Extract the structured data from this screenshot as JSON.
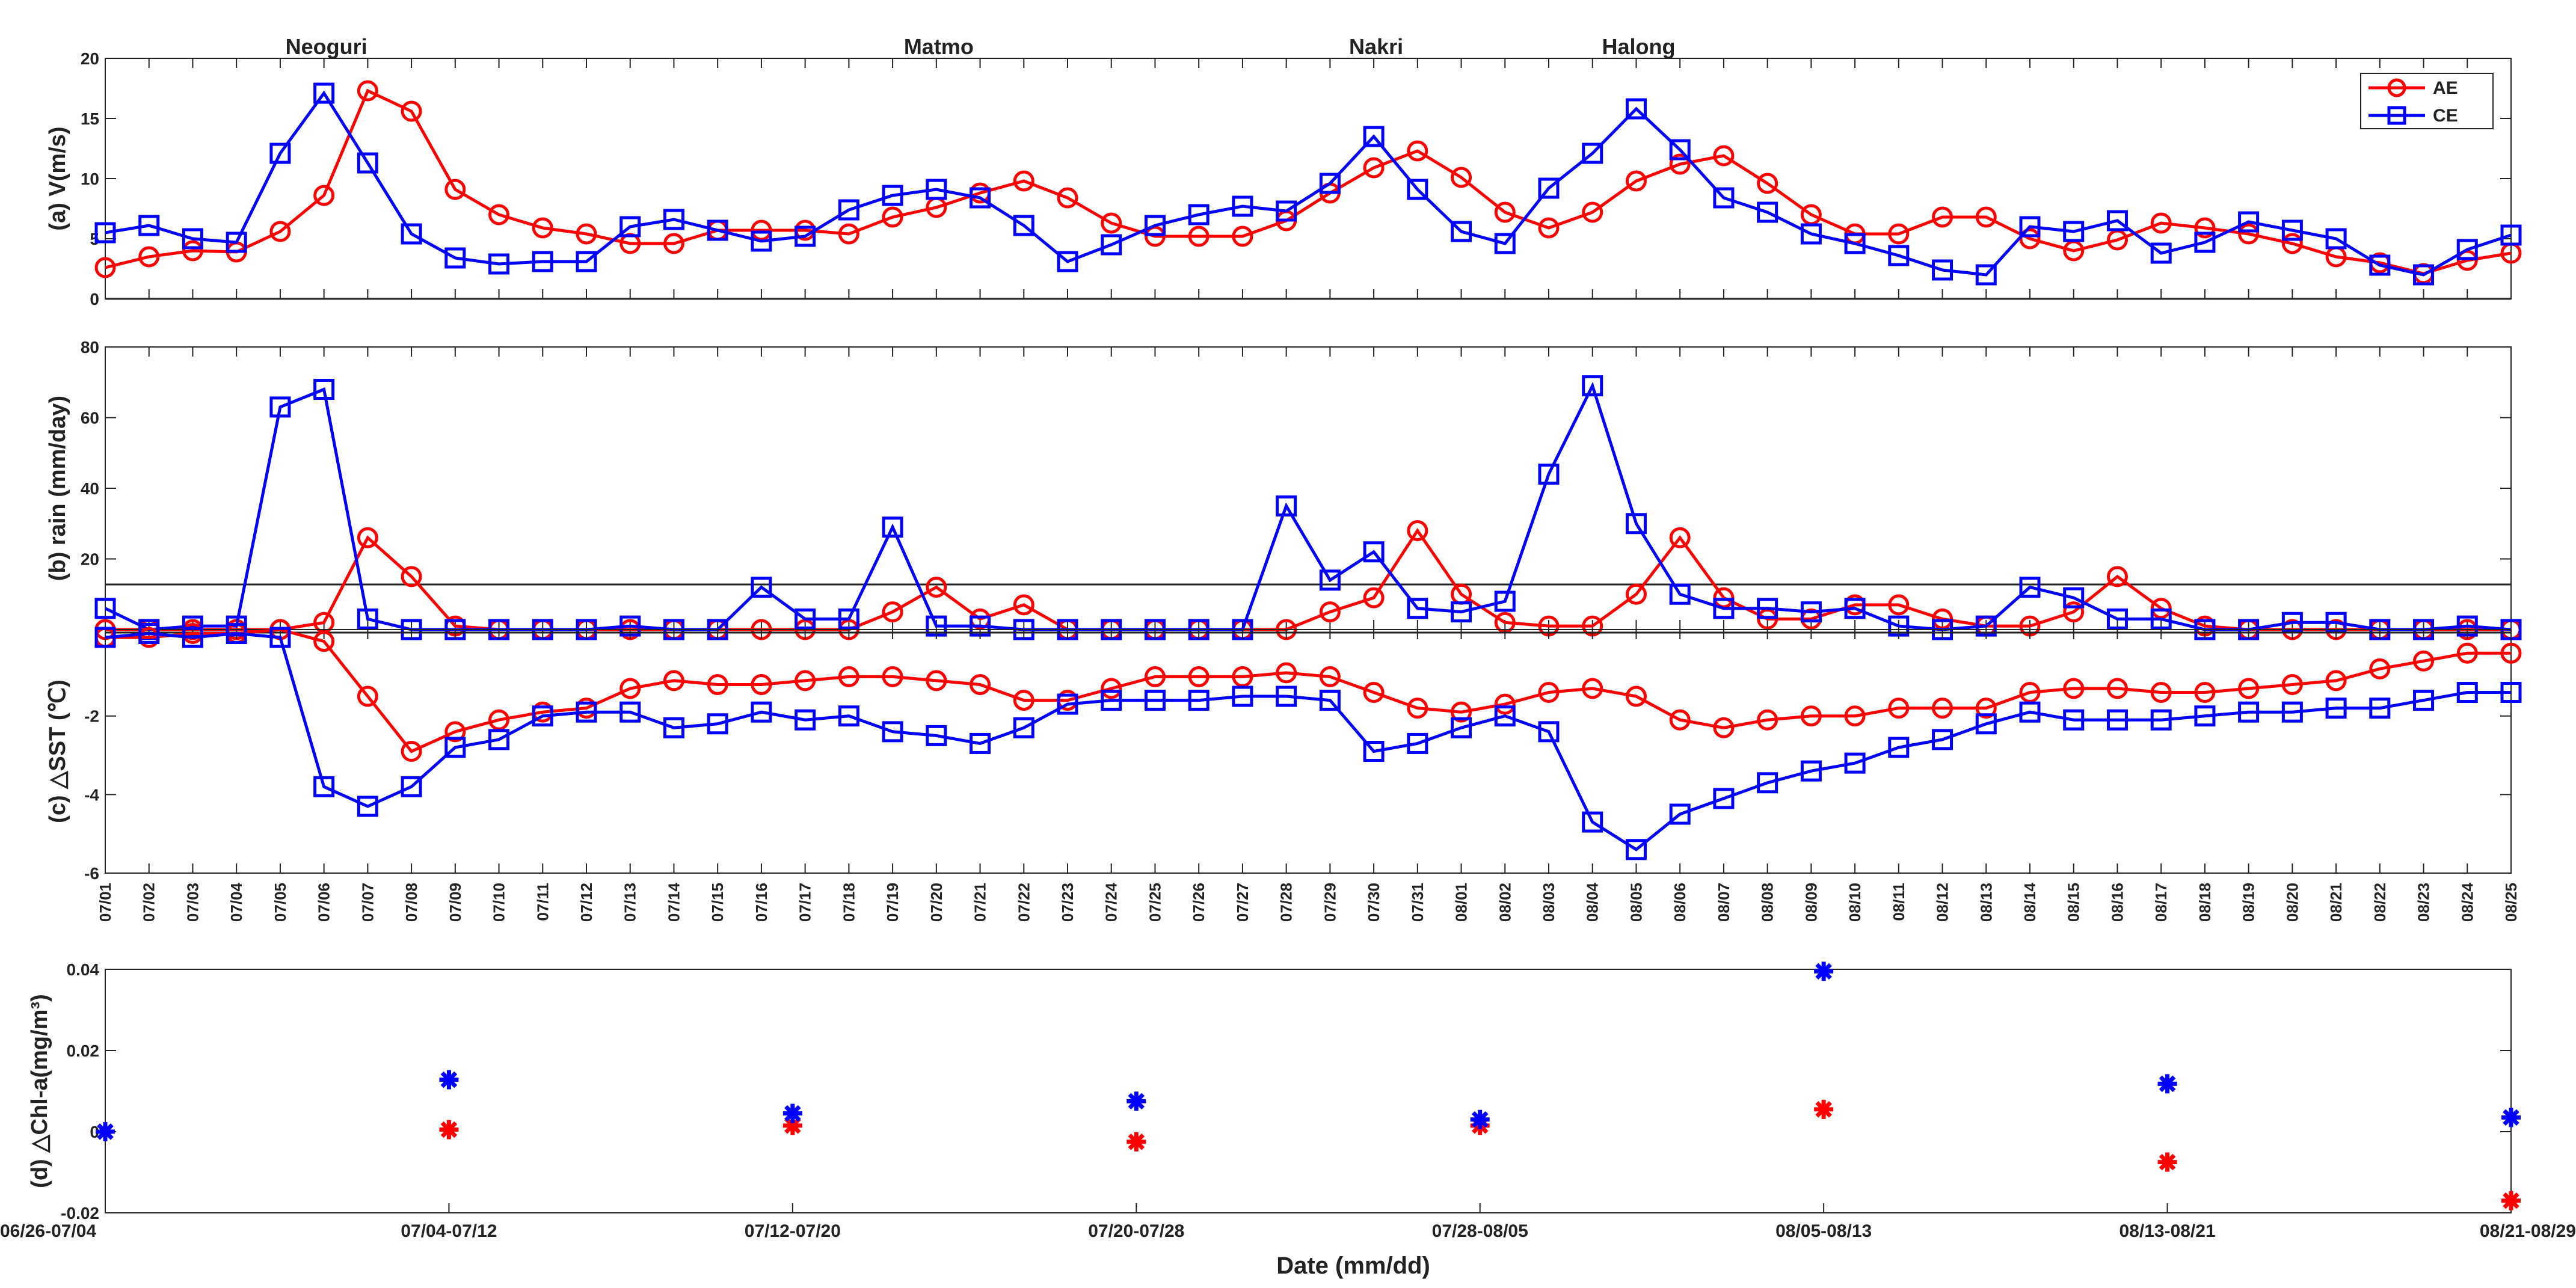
{
  "chart_data": {
    "type": "line",
    "xlabel": "Date (mm/dd)",
    "dates": [
      "07/01",
      "07/02",
      "07/03",
      "07/04",
      "07/05",
      "07/06",
      "07/07",
      "07/08",
      "07/09",
      "07/10",
      "07/11",
      "07/12",
      "07/13",
      "07/14",
      "07/15",
      "07/16",
      "07/17",
      "07/18",
      "07/19",
      "07/20",
      "07/21",
      "07/22",
      "07/23",
      "07/24",
      "07/25",
      "07/26",
      "07/27",
      "07/28",
      "07/29",
      "07/30",
      "07/31",
      "08/01",
      "08/02",
      "08/03",
      "08/04",
      "08/05",
      "08/06",
      "08/07",
      "08/08",
      "08/09",
      "08/10",
      "08/11",
      "08/12",
      "08/13",
      "08/14",
      "08/15",
      "08/16",
      "08/17",
      "08/18",
      "08/19",
      "08/20",
      "08/21",
      "08/22",
      "08/23",
      "08/24",
      "08/25"
    ],
    "typhoons": [
      {
        "name": "Neoguri",
        "date": "07/06"
      },
      {
        "name": "Matmo",
        "date": "07/20"
      },
      {
        "name": "Nakri",
        "date": "07/30"
      },
      {
        "name": "Halong",
        "date": "08/05"
      }
    ],
    "legend": {
      "ae": "AE",
      "ce": "CE"
    },
    "colors": {
      "ae": "#ff0000",
      "ce": "#0000ff"
    },
    "panels": [
      {
        "id": "wind",
        "ylabel": "(a) V(m/s)",
        "ylim": [
          0,
          20
        ],
        "yticks": [
          0,
          5,
          10,
          15,
          20
        ],
        "ae": [
          2.6,
          3.5,
          4.0,
          3.9,
          5.6,
          8.6,
          17.3,
          15.6,
          9.1,
          7.0,
          5.9,
          5.4,
          4.6,
          4.6,
          5.7,
          5.7,
          5.7,
          5.4,
          6.8,
          7.6,
          8.8,
          9.8,
          8.4,
          6.3,
          5.2,
          5.2,
          5.2,
          6.5,
          8.8,
          10.9,
          12.3,
          10.1,
          7.2,
          5.9,
          7.2,
          9.8,
          11.2,
          11.9,
          9.6,
          7.0,
          5.4,
          5.4,
          6.8,
          6.8,
          5.0,
          4.0,
          4.9,
          6.3,
          5.9,
          5.4,
          4.6,
          3.5,
          3.0,
          2.1,
          3.2,
          3.8
        ],
        "ce": [
          5.5,
          6.1,
          5.0,
          4.7,
          12.1,
          17.1,
          11.3,
          5.4,
          3.4,
          2.9,
          3.1,
          3.1,
          6.0,
          6.6,
          5.7,
          4.8,
          5.2,
          7.4,
          8.6,
          9.1,
          8.4,
          6.1,
          3.1,
          4.5,
          6.1,
          7.0,
          7.7,
          7.3,
          9.6,
          13.5,
          9.1,
          5.6,
          4.6,
          9.2,
          12.1,
          15.8,
          12.4,
          8.4,
          7.2,
          5.4,
          4.6,
          3.6,
          2.4,
          2.0,
          6.0,
          5.6,
          6.5,
          3.8,
          4.7,
          6.4,
          5.7,
          5.0,
          2.8,
          2.0,
          4.1,
          5.3
        ]
      },
      {
        "id": "rain",
        "ylabel": "(b) rain (mm/day)",
        "ylim": [
          0,
          80
        ],
        "yticks": [
          20,
          40,
          60,
          80
        ],
        "ae": [
          0,
          0,
          0,
          0,
          0,
          2,
          26,
          15,
          1,
          0,
          0,
          0,
          0,
          0,
          0,
          0,
          0,
          0,
          5,
          12,
          3,
          7,
          0,
          0,
          0,
          0,
          0,
          0,
          5,
          9,
          28,
          10,
          2,
          1,
          1,
          10,
          26,
          9,
          3,
          3,
          7,
          7,
          3,
          1,
          1,
          5,
          15,
          6,
          1,
          0,
          0,
          0,
          0,
          0,
          0,
          0
        ],
        "ce": [
          6,
          0,
          1,
          1,
          63,
          68,
          3,
          0,
          0,
          0,
          0,
          0,
          1,
          0,
          0,
          12,
          3,
          3,
          29,
          1,
          1,
          0,
          0,
          0,
          0,
          0,
          0,
          35,
          14,
          22,
          6,
          5,
          8,
          44,
          69,
          30,
          10,
          6,
          6,
          5,
          6,
          1,
          0,
          1,
          12,
          9,
          3,
          3,
          0,
          0,
          2,
          2,
          0,
          0,
          1,
          0
        ]
      },
      {
        "id": "sst",
        "ylabel": "(c) △SST (℃)",
        "ylim": [
          -6,
          0.2
        ],
        "yticks": [
          -6,
          -4,
          -2
        ],
        "ytick_labels": [
          "-6",
          "-4",
          "-2"
        ],
        "ae": [
          0.0,
          0.0,
          0.1,
          0.1,
          0.2,
          -0.1,
          -1.5,
          -2.9,
          -2.4,
          -2.1,
          -1.9,
          -1.8,
          -1.3,
          -1.1,
          -1.2,
          -1.2,
          -1.1,
          -1.0,
          -1.0,
          -1.1,
          -1.2,
          -1.6,
          -1.6,
          -1.3,
          -1.0,
          -1.0,
          -1.0,
          -0.9,
          -1.0,
          -1.4,
          -1.8,
          -1.9,
          -1.7,
          -1.4,
          -1.3,
          -1.5,
          -2.1,
          -2.3,
          -2.1,
          -2.0,
          -2.0,
          -1.8,
          -1.8,
          -1.8,
          -1.4,
          -1.3,
          -1.3,
          -1.4,
          -1.4,
          -1.3,
          -1.2,
          -1.1,
          -0.8,
          -0.6,
          -0.4,
          -0.4
        ],
        "ce": [
          0.0,
          0.1,
          0.0,
          0.1,
          0.0,
          -3.8,
          -4.3,
          -3.8,
          -2.8,
          -2.6,
          -2.0,
          -1.9,
          -1.9,
          -2.3,
          -2.2,
          -1.9,
          -2.1,
          -2.0,
          -2.4,
          -2.5,
          -2.7,
          -2.3,
          -1.7,
          -1.6,
          -1.6,
          -1.6,
          -1.5,
          -1.5,
          -1.6,
          -2.9,
          -2.7,
          -2.3,
          -2.0,
          -2.4,
          -4.7,
          -5.4,
          -4.5,
          -4.1,
          -3.7,
          -3.4,
          -3.2,
          -2.8,
          -2.6,
          -2.2,
          -1.9,
          -2.1,
          -2.1,
          -2.1,
          -2.0,
          -1.9,
          -1.9,
          -1.8,
          -1.8,
          -1.6,
          -1.4,
          -1.4
        ]
      }
    ],
    "chl": {
      "ylabel": "(d) △Chl-a(mg/m³)",
      "ylim": [
        -0.02,
        0.04
      ],
      "yticks": [
        -0.02,
        0,
        0.02,
        0.04
      ],
      "ytick_labels": [
        "-0.02",
        "0",
        "0.02",
        "0.04"
      ],
      "categories": [
        "06/26-07/04",
        "07/04-07/12",
        "07/12-07/20",
        "07/20-07/28",
        "07/28-08/05",
        "08/05-08/13",
        "08/13-08/21",
        "08/21-08/29"
      ],
      "ae": [
        0.0,
        0.0005,
        0.0015,
        -0.0025,
        0.0015,
        0.0055,
        -0.0075,
        -0.017
      ],
      "ce": [
        0.0,
        0.0128,
        0.0045,
        0.0075,
        0.003,
        0.0395,
        0.0118,
        0.0035
      ]
    }
  }
}
